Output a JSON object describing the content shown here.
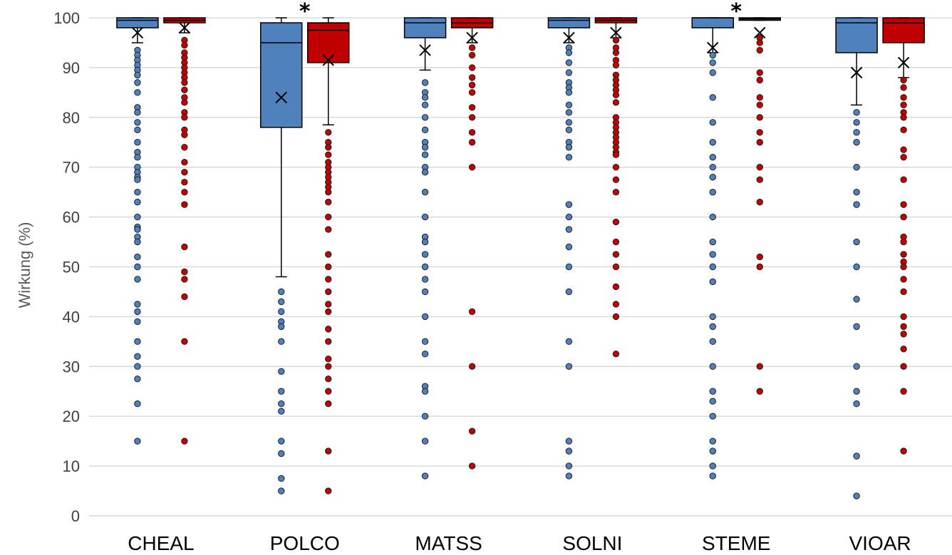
{
  "chart_data": {
    "type": "box",
    "title": "",
    "xlabel": "",
    "ylabel": "Wirkung (%)",
    "ylim": [
      0,
      100
    ],
    "yticks": [
      0,
      10,
      20,
      30,
      40,
      50,
      60,
      70,
      80,
      90,
      100
    ],
    "grid": true,
    "legend": "none",
    "categories": [
      "CHEAL",
      "POLCO",
      "MATSS",
      "SOLNI",
      "STEME",
      "VIOAR"
    ],
    "colors": {
      "blue": "#4f81bd",
      "red": "#c00000"
    },
    "boxes": [
      {
        "category": "CHEAL",
        "color": "blue",
        "q1": 98,
        "median": 99.5,
        "q3": 100,
        "mean": 97,
        "whisker_low": 95,
        "whisker_high": 100,
        "outliers": [
          93.5,
          92.5,
          91.5,
          90.5,
          89.5,
          88.5,
          87,
          85,
          82,
          81,
          79,
          77.5,
          75,
          73,
          72,
          70,
          69,
          68,
          67.5,
          65,
          63,
          60,
          58,
          57.5,
          56,
          55,
          52,
          50,
          47.5,
          42.5,
          41,
          39,
          35,
          32,
          30,
          27.5,
          22.5,
          15
        ]
      },
      {
        "category": "CHEAL",
        "color": "red",
        "q1": 99,
        "median": 99.5,
        "q3": 100,
        "mean": 98,
        "whisker_low": 97,
        "whisker_high": 100,
        "outliers": [
          95.5,
          94.5,
          93,
          92,
          91,
          90,
          89,
          88,
          87,
          85.5,
          84,
          83,
          81,
          80,
          77.5,
          76.5,
          74,
          71,
          69,
          67,
          65,
          62.5,
          54,
          49,
          47.5,
          44,
          35,
          15
        ]
      },
      {
        "category": "POLCO",
        "color": "blue",
        "q1": 78,
        "median": 95,
        "q3": 99,
        "mean": 84,
        "whisker_low": 48,
        "whisker_high": 100,
        "outliers": [
          45,
          43,
          41,
          39,
          38,
          35,
          29,
          25,
          22.5,
          21,
          15,
          12.5,
          7.5,
          5
        ]
      },
      {
        "category": "POLCO",
        "color": "red",
        "q1": 91,
        "median": 97.5,
        "q3": 99,
        "mean": 91.5,
        "whisker_low": 78.5,
        "whisker_high": 100,
        "outliers": [
          77,
          75,
          74,
          72.5,
          71,
          70,
          69,
          68,
          67,
          66,
          65,
          63,
          60,
          57.5,
          52.5,
          50,
          47.5,
          45,
          42.5,
          41,
          37.5,
          35,
          31.5,
          30,
          27.5,
          25,
          22.5,
          13,
          5
        ]
      },
      {
        "category": "MATSS",
        "color": "blue",
        "q1": 96,
        "median": 99,
        "q3": 100,
        "mean": 93.5,
        "whisker_low": 89.5,
        "whisker_high": 100,
        "outliers": [
          87,
          85,
          84,
          82.5,
          80,
          77.5,
          75,
          74,
          72.5,
          70,
          69,
          65,
          60,
          56,
          55,
          52.5,
          50,
          47.5,
          45,
          40,
          35,
          32.5,
          26,
          25,
          20,
          15,
          8
        ]
      },
      {
        "category": "MATSS",
        "color": "red",
        "q1": 98,
        "median": 99,
        "q3": 100,
        "mean": 96,
        "whisker_low": 95,
        "whisker_high": 100,
        "outliers": [
          94,
          92.5,
          90,
          88,
          86.5,
          85,
          82,
          80,
          77,
          75,
          70,
          41,
          30,
          17,
          10
        ]
      },
      {
        "category": "SOLNI",
        "color": "blue",
        "q1": 98,
        "median": 99.5,
        "q3": 100,
        "mean": 96,
        "whisker_low": 95,
        "whisker_high": 100,
        "outliers": [
          94,
          93,
          91,
          89,
          87,
          86,
          85,
          82.5,
          81,
          79,
          77.5,
          75,
          74,
          72,
          62.5,
          60,
          57.5,
          54,
          50,
          45,
          35,
          30,
          15,
          13,
          10,
          8
        ]
      },
      {
        "category": "SOLNI",
        "color": "red",
        "q1": 99,
        "median": 99.5,
        "q3": 100,
        "mean": 97,
        "whisker_low": 96,
        "whisker_high": 100,
        "outliers": [
          95.5,
          94,
          93,
          91.5,
          90.5,
          88.5,
          87.5,
          86.5,
          85.5,
          84.5,
          83,
          80,
          79,
          78,
          77,
          76,
          75,
          74,
          73,
          72.5,
          70,
          67.5,
          65,
          59,
          55,
          52.5,
          50,
          46,
          42.5,
          40,
          32.5
        ]
      },
      {
        "category": "STEME",
        "color": "blue",
        "q1": 98,
        "median": 100,
        "q3": 100,
        "mean": 94,
        "whisker_low": 93,
        "whisker_high": 100,
        "outliers": [
          92.5,
          91,
          89,
          84,
          79,
          75,
          72,
          70,
          68,
          65,
          60,
          55,
          52.5,
          50,
          47,
          40,
          38,
          35,
          30,
          25,
          23,
          20,
          15,
          13,
          10,
          8
        ]
      },
      {
        "category": "STEME",
        "color": "red",
        "q1": 99.5,
        "median": 99.8,
        "q3": 100,
        "mean": 97,
        "whisker_low": 99.5,
        "whisker_high": 100,
        "outliers": [
          96,
          95,
          93.5,
          89,
          87.5,
          84,
          82.5,
          80,
          77,
          75,
          70,
          67.5,
          63,
          52,
          50,
          30,
          25
        ]
      },
      {
        "category": "VIOAR",
        "color": "blue",
        "q1": 93,
        "median": 99,
        "q3": 100,
        "mean": 89,
        "whisker_low": 82.5,
        "whisker_high": 100,
        "outliers": [
          81,
          79,
          77,
          75,
          70,
          65,
          62.5,
          55,
          50,
          43.5,
          38,
          30,
          25,
          22.5,
          12,
          4
        ]
      },
      {
        "category": "VIOAR",
        "color": "red",
        "q1": 95,
        "median": 99,
        "q3": 100,
        "mean": 91,
        "whisker_low": 88,
        "whisker_high": 100,
        "outliers": [
          87.5,
          86,
          84,
          82.5,
          81,
          80,
          77.5,
          73.5,
          72,
          67.5,
          62.5,
          60,
          56,
          55,
          52.5,
          51,
          50,
          47.5,
          45,
          40,
          38,
          36.5,
          33.5,
          30,
          25,
          13
        ]
      }
    ],
    "annotations": [
      {
        "text": "*",
        "category": "POLCO"
      },
      {
        "text": "*",
        "category": "STEME"
      }
    ]
  }
}
